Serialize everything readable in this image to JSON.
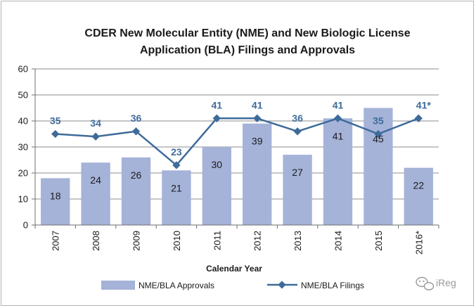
{
  "chart_data": {
    "type": "bar",
    "title_lines": [
      "CDER New Molecular Entity (NME) and New Biologic License",
      "Application (BLA) Filings and Approvals"
    ],
    "categories": [
      "2007",
      "2008",
      "2009",
      "2010",
      "2011",
      "2012",
      "2013",
      "2014",
      "2015",
      "2016*"
    ],
    "series": [
      {
        "name": "NME/BLA Approvals",
        "kind": "bar",
        "color": "#a5b3d9",
        "values": [
          18,
          24,
          26,
          21,
          30,
          39,
          27,
          41,
          45,
          22
        ],
        "value_labels": [
          "18",
          "24",
          "26",
          "21",
          "30",
          "39",
          "27",
          "41",
          "45",
          "22"
        ]
      },
      {
        "name": "NME/BLA Filings",
        "kind": "line",
        "color": "#3e6b9a",
        "values": [
          35,
          34,
          36,
          23,
          41,
          41,
          36,
          41,
          35,
          41
        ],
        "value_labels": [
          "35",
          "34",
          "36",
          "23",
          "41",
          "41",
          "36",
          "41",
          "35",
          "41*"
        ]
      }
    ],
    "xlabel": "Calendar Year",
    "ylabel": "",
    "ylim": [
      0,
      60
    ],
    "yticks": [
      "0",
      "10",
      "20",
      "30",
      "40",
      "50",
      "60"
    ],
    "grid": true,
    "legend": "bottom"
  },
  "watermark": {
    "text": "iReg",
    "icon": "wechat-icon"
  }
}
